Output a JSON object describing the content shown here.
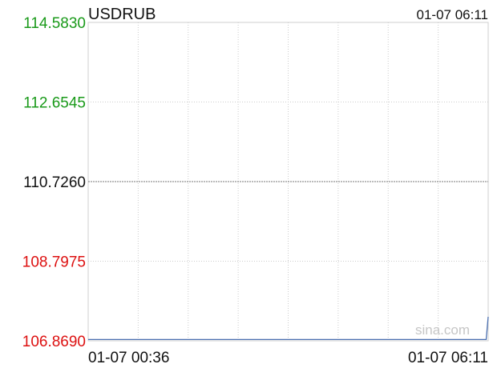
{
  "chart_data": {
    "type": "line",
    "title": "USDRUB",
    "timestamp": "01-07 06:11",
    "y_ticks": [
      "114.5830",
      "112.6545",
      "110.7260",
      "108.7975",
      "106.8690"
    ],
    "y_values": [
      114.583,
      112.6545,
      110.726,
      108.7975,
      106.869
    ],
    "ylim": [
      106.869,
      114.583
    ],
    "reference_value": 110.726,
    "x_labels": [
      "01-07 00:36",
      "01-07 06:11"
    ],
    "series": [
      {
        "x": [
          0,
          0.995,
          0.995,
          1
        ],
        "values": [
          106.9,
          106.9,
          106.9,
          107.45
        ]
      }
    ],
    "watermark": "sina.com",
    "colors": {
      "up": "#1a9a1a",
      "down": "#dd1111",
      "neutral": "#111111",
      "line": "#4a6fb0",
      "grid": "#cccccc"
    }
  }
}
